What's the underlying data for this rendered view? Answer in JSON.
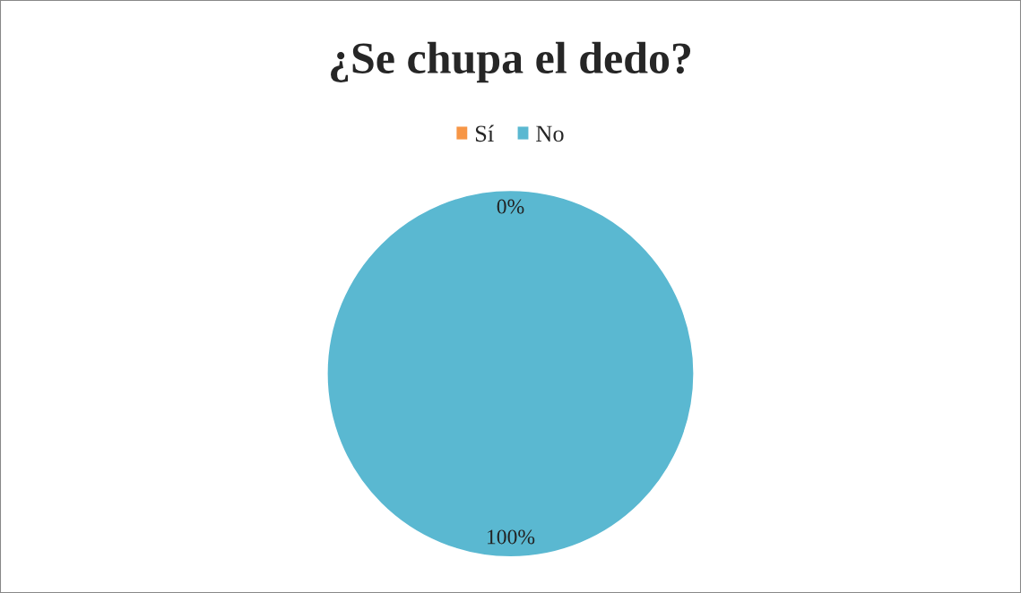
{
  "chart_data": {
    "type": "pie",
    "title": "¿Se chupa el dedo?",
    "categories": [
      "Sí",
      "No"
    ],
    "values": [
      0,
      100
    ],
    "colors": [
      "#f79646",
      "#5ab8d1"
    ],
    "value_labels": [
      "0%",
      "100%"
    ],
    "legend": "top"
  }
}
